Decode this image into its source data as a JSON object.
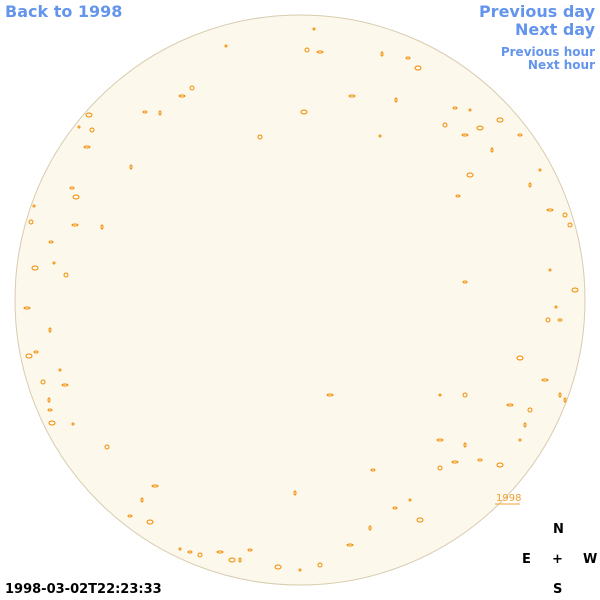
{
  "navigation": {
    "back": "Back to 1998",
    "previous_day": "Previous day",
    "next_day": "Next day",
    "previous_hour": "Previous hour",
    "next_hour": "Next hour"
  },
  "region_label": "1998",
  "compass": {
    "north": "N",
    "east": "E",
    "center": "+",
    "west": "W",
    "south": "S"
  },
  "timestamp": "1998-03-02T22:23:33"
}
